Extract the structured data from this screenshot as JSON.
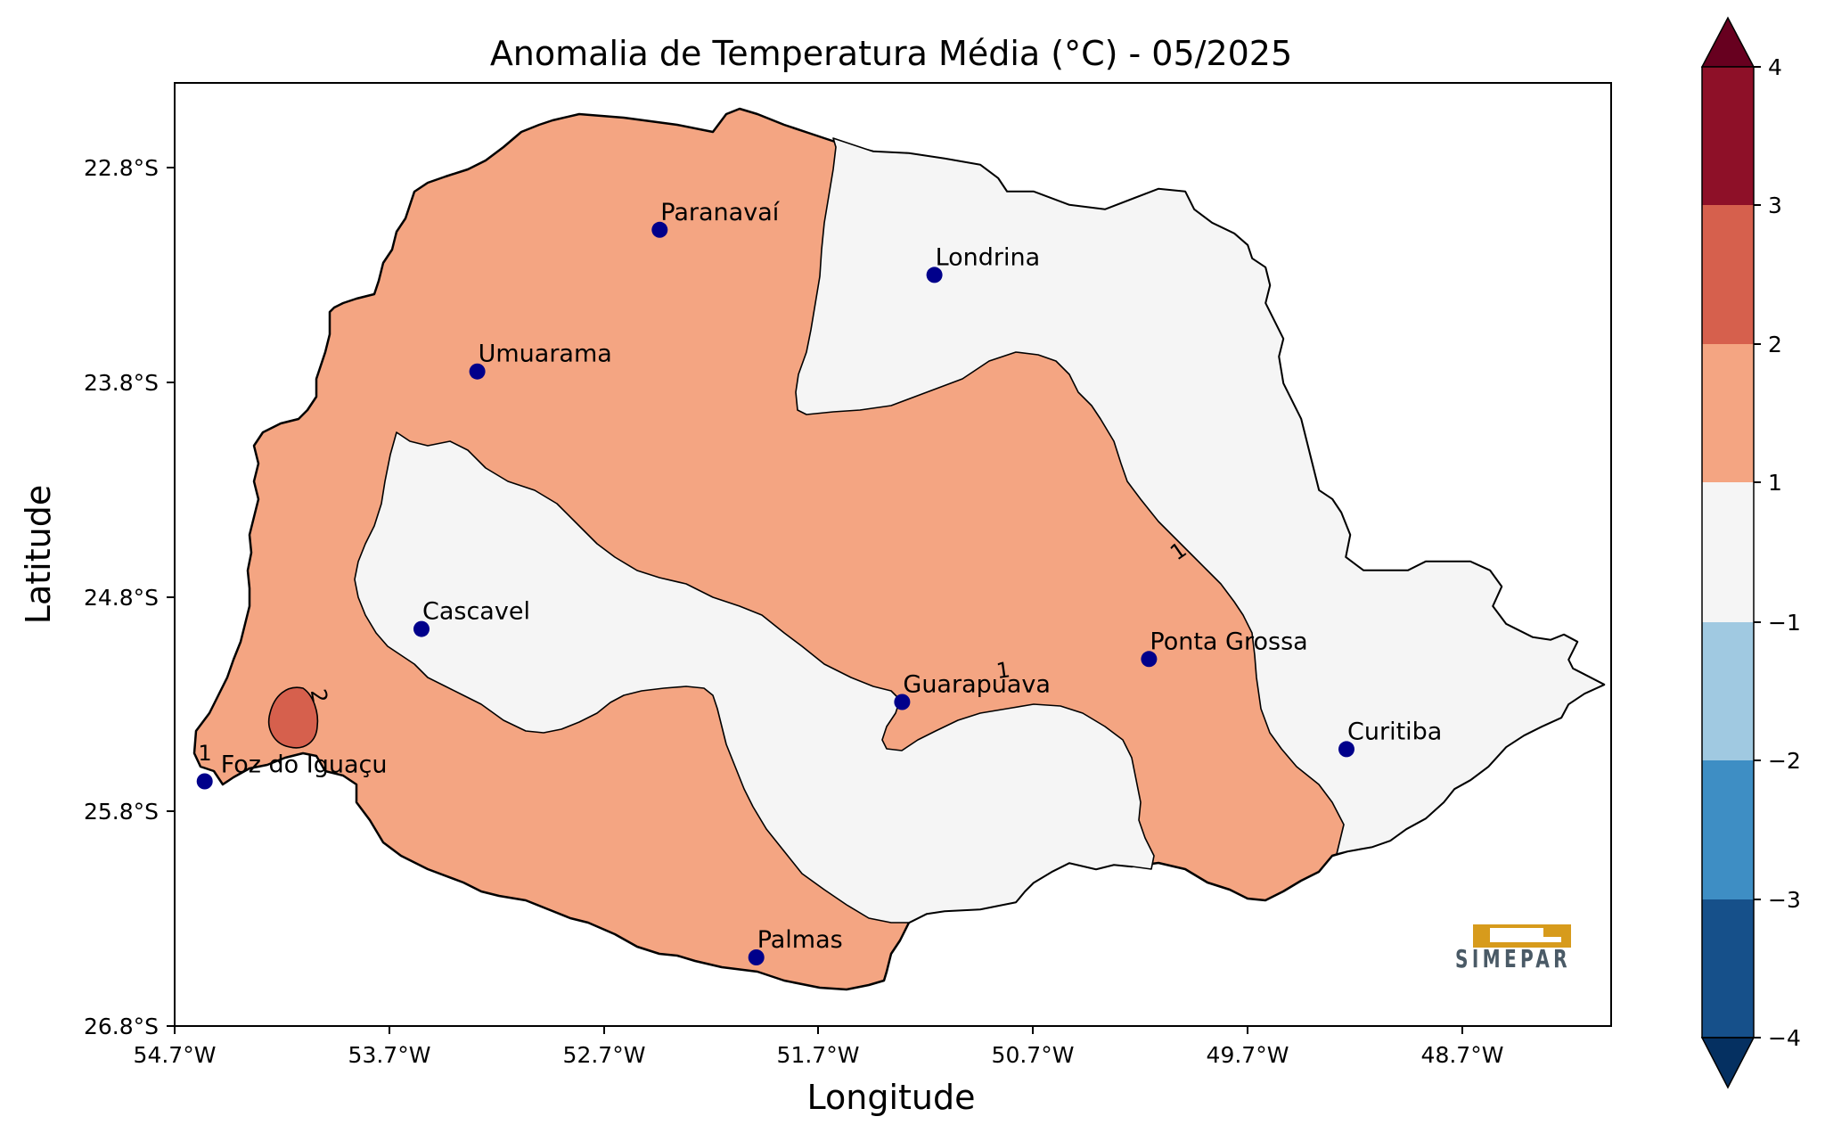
{
  "map": {
    "title": "Anomalia de Temperatura Média (°C) - 05/2025",
    "xlabel": "Longitude",
    "ylabel": "Latitude",
    "x_ticks": [
      "54.7°W",
      "53.7°W",
      "52.7°W",
      "51.7°W",
      "50.7°W",
      "49.7°W",
      "48.7°W"
    ],
    "y_ticks": [
      "22.8°S",
      "23.8°S",
      "24.8°S",
      "25.8°S",
      "26.8°S"
    ],
    "cities": [
      {
        "name": "Paranavaí",
        "lon": -52.44,
        "lat": -23.09
      },
      {
        "name": "Londrina",
        "lon": -51.16,
        "lat": -23.3
      },
      {
        "name": "Umuarama",
        "lon": -53.29,
        "lat": -23.75
      },
      {
        "name": "Cascavel",
        "lon": -53.55,
        "lat": -24.95
      },
      {
        "name": "Ponta Grossa",
        "lon": -50.16,
        "lat": -25.09
      },
      {
        "name": "Guarapuava",
        "lon": -51.31,
        "lat": -25.29
      },
      {
        "name": "Curitiba",
        "lon": -49.24,
        "lat": -25.51
      },
      {
        "name": "Foz do Iguaçu",
        "lon": -54.56,
        "lat": -25.66
      },
      {
        "name": "Palmas",
        "lon": -51.99,
        "lat": -26.48
      }
    ],
    "contour_labels": [
      "1",
      "1",
      "2",
      "1"
    ],
    "colorbar": {
      "ticks": [
        "4",
        "3",
        "2",
        "1",
        "−1",
        "−2",
        "−3",
        "−4"
      ],
      "colors": {
        "extend_max": "#67001f",
        "3_to_4": "#8e1028",
        "2_to_3": "#d6604d",
        "1_to_2": "#f4a582",
        "-1_to_1": "#f5f5f5",
        "-2_to_-1": "#a0c9e1",
        "-3_to_-2": "#3e8ec4",
        "-4_to_-3": "#16508a",
        "extend_min": "#053061"
      }
    },
    "logo_text": "SIMEPAR",
    "logo_color": "#d79b1c",
    "city_marker_color": "#00008b"
  }
}
